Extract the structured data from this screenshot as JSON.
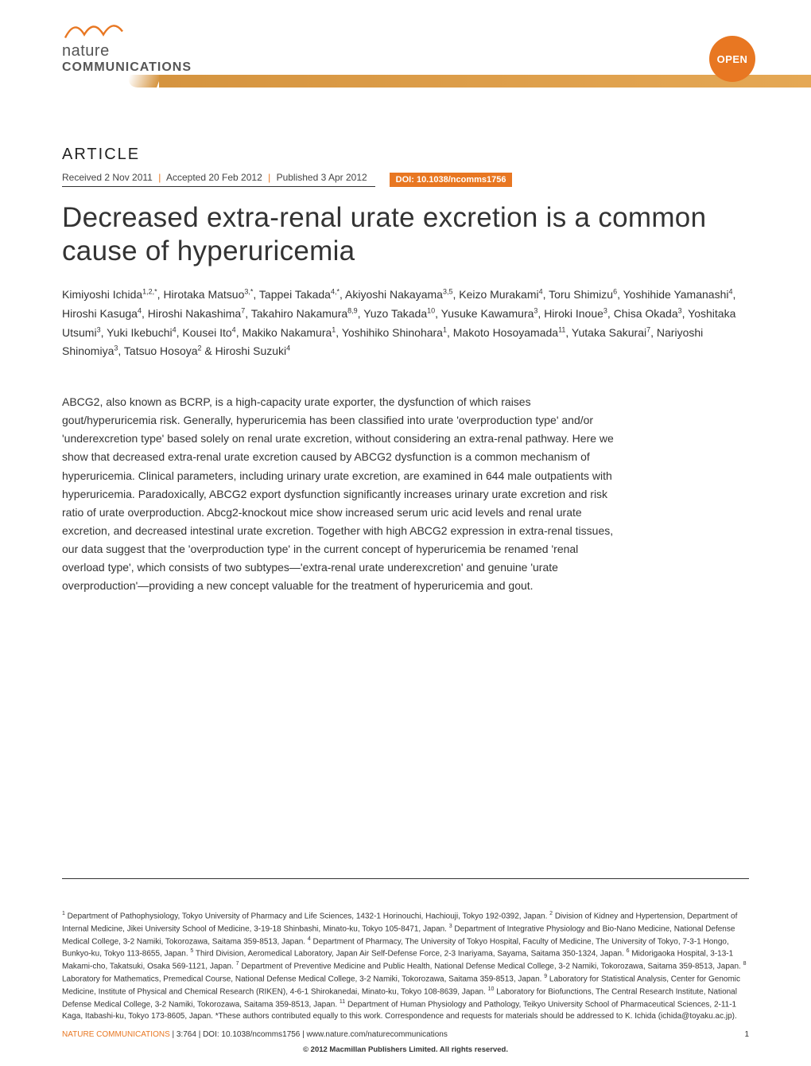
{
  "journal": {
    "logo_top": "nature",
    "logo_bottom": "COMMUNICATIONS",
    "open_badge": "OPEN",
    "accent_color": "#e87722",
    "stripe_color": "#d5943f"
  },
  "article": {
    "label": "ARTICLE",
    "received": "Received 2 Nov 2011",
    "accepted": "Accepted 20 Feb 2012",
    "published": "Published 3 Apr 2012",
    "doi": "DOI: 10.1038/ncomms1756",
    "title": "Decreased extra-renal urate excretion is a common cause of hyperuricemia",
    "authors_html": "Kimiyoshi Ichida<sup>1,2,*</sup>, Hirotaka Matsuo<sup>3,*</sup>, Tappei Takada<sup>4,*</sup>, Akiyoshi Nakayama<sup>3,5</sup>, Keizo Murakami<sup>4</sup>, Toru Shimizu<sup>6</sup>, Yoshihide Yamanashi<sup>4</sup>, Hiroshi Kasuga<sup>4</sup>, Hiroshi Nakashima<sup>7</sup>, Takahiro Nakamura<sup>8,9</sup>, Yuzo Takada<sup>10</sup>, Yusuke Kawamura<sup>3</sup>, Hiroki Inoue<sup>3</sup>, Chisa Okada<sup>3</sup>, Yoshitaka Utsumi<sup>3</sup>, Yuki Ikebuchi<sup>4</sup>, Kousei Ito<sup>4</sup>, Makiko Nakamura<sup>1</sup>, Yoshihiko Shinohara<sup>1</sup>, Makoto Hosoyamada<sup>11</sup>, Yutaka Sakurai<sup>7</sup>, Nariyoshi Shinomiya<sup>3</sup>, Tatsuo Hosoya<sup>2</sup> & Hiroshi Suzuki<sup>4</sup>",
    "abstract": "ABCG2, also known as BCRP, is a high-capacity urate exporter, the dysfunction of which raises gout/hyperuricemia risk. Generally, hyperuricemia has been classified into urate 'overproduction type' and/or 'underexcretion type' based solely on renal urate excretion, without considering an extra-renal pathway. Here we show that decreased extra-renal urate excretion caused by ABCG2 dysfunction is a common mechanism of hyperuricemia. Clinical parameters, including urinary urate excretion, are examined in 644 male outpatients with hyperuricemia. Paradoxically, ABCG2 export dysfunction significantly increases urinary urate excretion and risk ratio of urate overproduction. Abcg2-knockout mice show increased serum uric acid levels and renal urate excretion, and decreased intestinal urate excretion. Together with high ABCG2 expression in extra-renal tissues, our data suggest that the 'overproduction type' in the current concept of hyperuricemia be renamed 'renal overload type', which consists of two subtypes—'extra-renal urate underexcretion' and genuine 'urate overproduction'—providing a new concept valuable for the treatment of hyperuricemia and gout."
  },
  "affiliations_html": "<sup>1</sup> Department of Pathophysiology, Tokyo University of Pharmacy and Life Sciences, 1432-1 Horinouchi, Hachiouji, Tokyo 192-0392, Japan. <sup>2</sup> Division of Kidney and Hypertension, Department of Internal Medicine, Jikei University School of Medicine, 3-19-18 Shinbashi, Minato-ku, Tokyo 105-8471, Japan. <sup>3</sup> Department of Integrative Physiology and Bio-Nano Medicine, National Defense Medical College, 3-2 Namiki, Tokorozawa, Saitama 359-8513, Japan. <sup>4</sup> Department of Pharmacy, The University of Tokyo Hospital, Faculty of Medicine, The University of Tokyo, 7-3-1 Hongo, Bunkyo-ku, Tokyo 113-8655, Japan. <sup>5</sup> Third Division, Aeromedical Laboratory, Japan Air Self-Defense Force, 2-3 Inariyama, Sayama, Saitama 350-1324, Japan. <sup>6</sup> Midorigaoka Hospital, 3-13-1 Makami-cho, Takatsuki, Osaka 569-1121, Japan. <sup>7</sup> Department of Preventive Medicine and Public Health, National Defense Medical College, 3-2 Namiki, Tokorozawa, Saitama 359-8513, Japan. <sup>8</sup> Laboratory for Mathematics, Premedical Course, National Defense Medical College, 3-2 Namiki, Tokorozawa, Saitama 359-8513, Japan. <sup>9</sup> Laboratory for Statistical Analysis, Center for Genomic Medicine, Institute of Physical and Chemical Research (RIKEN), 4-6-1 Shirokanedai, Minato-ku, Tokyo 108-8639, Japan. <sup>10</sup> Laboratory for Biofunctions, The Central Research Institute, National Defense Medical College, 3-2 Namiki, Tokorozawa, Saitama 359-8513, Japan. <sup>11</sup> Department of Human Physiology and Pathology, Teikyo University School of Pharmaceutical Sciences, 2-11-1 Kaga, Itabashi-ku, Tokyo 173-8605, Japan. *These authors contributed equally to this work. Correspondence and requests for materials should be addressed to K. Ichida (ichida@toyaku.ac.jp).",
  "footer": {
    "citation_journal": "NATURE COMMUNICATIONS",
    "citation_rest": " | 3:764 | DOI: 10.1038/ncomms1756 | www.nature.com/naturecommunications",
    "page_number": "1",
    "copyright": "© 2012 Macmillan Publishers Limited. All rights reserved."
  }
}
